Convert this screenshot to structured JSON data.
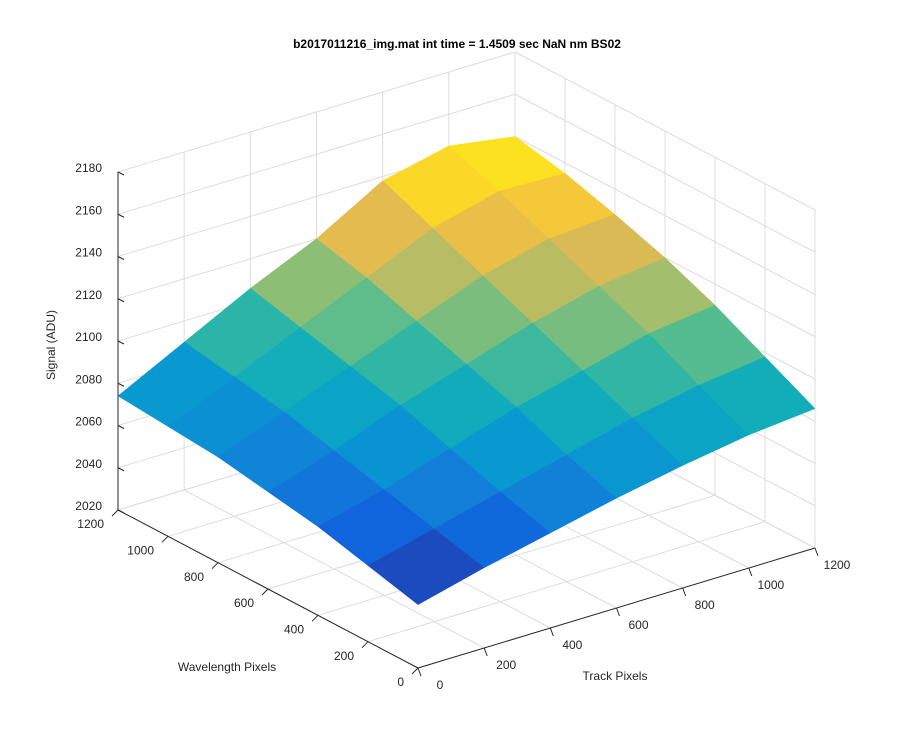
{
  "chart_data": {
    "type": "surface",
    "title": "b2017011216_img.mat int time = 1.4509 sec  NaN nm BS02",
    "xlabel": "Track Pixels",
    "ylabel": "Wavelength Pixels",
    "zlabel": "Signal (ADU)",
    "x": [
      0,
      200,
      400,
      600,
      800,
      1000,
      1200
    ],
    "y": [
      0,
      200,
      400,
      600,
      800,
      1000,
      1200
    ],
    "z": [
      [
        2050,
        2058,
        2065,
        2072,
        2078,
        2083,
        2086
      ],
      [
        2056,
        2064,
        2072,
        2080,
        2088,
        2094,
        2098
      ],
      [
        2062,
        2070,
        2080,
        2090,
        2098,
        2106,
        2110
      ],
      [
        2066,
        2076,
        2088,
        2098,
        2108,
        2116,
        2120
      ],
      [
        2070,
        2082,
        2094,
        2106,
        2118,
        2126,
        2128
      ],
      [
        2072,
        2086,
        2100,
        2114,
        2128,
        2136,
        2135
      ],
      [
        2074,
        2090,
        2106,
        2120,
        2138,
        2145,
        2140
      ]
    ],
    "xlim": [
      0,
      1200
    ],
    "xticks": [
      0,
      200,
      400,
      600,
      800,
      1000,
      1200
    ],
    "ylim": [
      0,
      1200
    ],
    "yticks": [
      0,
      200,
      400,
      600,
      800,
      1000,
      1200
    ],
    "zlim": [
      2020,
      2180
    ],
    "zticks": [
      2020,
      2040,
      2060,
      2080,
      2100,
      2120,
      2140,
      2160,
      2180
    ],
    "colormap": "parula",
    "grid": true
  }
}
